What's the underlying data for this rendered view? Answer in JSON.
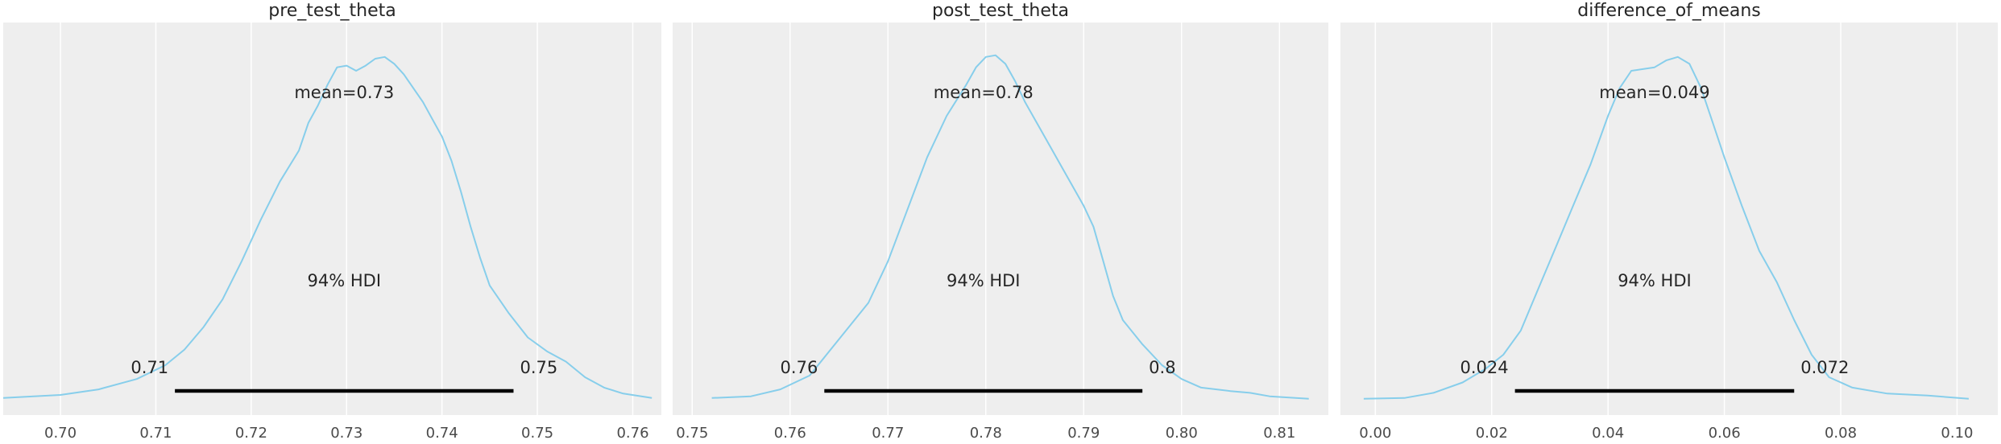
{
  "chart_data": [
    {
      "type": "area",
      "title": "pre_test_theta",
      "xlim": [
        0.694,
        0.763
      ],
      "xticks": [
        0.7,
        0.71,
        0.72,
        0.73,
        0.74,
        0.75,
        0.76
      ],
      "xtick_labels": [
        "0.70",
        "0.71",
        "0.72",
        "0.73",
        "0.74",
        "0.75",
        "0.76"
      ],
      "ylim": [
        0,
        1.05
      ],
      "density": [
        [
          0.694,
          0.005
        ],
        [
          0.7,
          0.014
        ],
        [
          0.704,
          0.03
        ],
        [
          0.708,
          0.06
        ],
        [
          0.711,
          0.1
        ],
        [
          0.713,
          0.145
        ],
        [
          0.715,
          0.21
        ],
        [
          0.717,
          0.29
        ],
        [
          0.719,
          0.4
        ],
        [
          0.721,
          0.52
        ],
        [
          0.723,
          0.63
        ],
        [
          0.725,
          0.72
        ],
        [
          0.726,
          0.8
        ],
        [
          0.727,
          0.85
        ],
        [
          0.728,
          0.91
        ],
        [
          0.729,
          0.96
        ],
        [
          0.73,
          0.965
        ],
        [
          0.731,
          0.95
        ],
        [
          0.732,
          0.965
        ],
        [
          0.733,
          0.985
        ],
        [
          0.734,
          0.99
        ],
        [
          0.735,
          0.97
        ],
        [
          0.736,
          0.94
        ],
        [
          0.737,
          0.9
        ],
        [
          0.738,
          0.86
        ],
        [
          0.739,
          0.81
        ],
        [
          0.74,
          0.76
        ],
        [
          0.741,
          0.69
        ],
        [
          0.742,
          0.6
        ],
        [
          0.743,
          0.5
        ],
        [
          0.744,
          0.41
        ],
        [
          0.745,
          0.33
        ],
        [
          0.747,
          0.25
        ],
        [
          0.749,
          0.18
        ],
        [
          0.751,
          0.14
        ],
        [
          0.753,
          0.11
        ],
        [
          0.755,
          0.065
        ],
        [
          0.757,
          0.035
        ],
        [
          0.759,
          0.018
        ],
        [
          0.762,
          0.005
        ]
      ],
      "mean_label": "mean=0.73",
      "hdi_label": "94% HDI",
      "hdi": [
        0.712,
        0.7475
      ],
      "hdi_low_label": "0.71",
      "hdi_high_label": "0.75"
    },
    {
      "type": "area",
      "title": "post_test_theta",
      "xlim": [
        0.748,
        0.815
      ],
      "xticks": [
        0.75,
        0.76,
        0.77,
        0.78,
        0.79,
        0.8,
        0.81
      ],
      "xtick_labels": [
        "0.75",
        "0.76",
        "0.77",
        "0.78",
        "0.79",
        "0.80",
        "0.81"
      ],
      "ylim": [
        0,
        1.05
      ],
      "density": [
        [
          0.752,
          0.005
        ],
        [
          0.756,
          0.01
        ],
        [
          0.759,
          0.03
        ],
        [
          0.762,
          0.07
        ],
        [
          0.764,
          0.14
        ],
        [
          0.766,
          0.21
        ],
        [
          0.768,
          0.28
        ],
        [
          0.77,
          0.4
        ],
        [
          0.772,
          0.55
        ],
        [
          0.774,
          0.7
        ],
        [
          0.776,
          0.82
        ],
        [
          0.778,
          0.91
        ],
        [
          0.779,
          0.96
        ],
        [
          0.78,
          0.99
        ],
        [
          0.781,
          0.995
        ],
        [
          0.782,
          0.97
        ],
        [
          0.783,
          0.92
        ],
        [
          0.784,
          0.86
        ],
        [
          0.786,
          0.76
        ],
        [
          0.788,
          0.66
        ],
        [
          0.79,
          0.56
        ],
        [
          0.791,
          0.5
        ],
        [
          0.792,
          0.4
        ],
        [
          0.793,
          0.3
        ],
        [
          0.794,
          0.23
        ],
        [
          0.796,
          0.16
        ],
        [
          0.798,
          0.1
        ],
        [
          0.8,
          0.06
        ],
        [
          0.802,
          0.035
        ],
        [
          0.805,
          0.025
        ],
        [
          0.807,
          0.02
        ],
        [
          0.809,
          0.01
        ],
        [
          0.813,
          0.003
        ]
      ],
      "mean_label": "mean=0.78",
      "hdi_label": "94% HDI",
      "hdi": [
        0.7635,
        0.796
      ],
      "hdi_low_label": "0.76",
      "hdi_high_label": "0.8"
    },
    {
      "type": "area",
      "title": "difference_of_means",
      "xlim": [
        -0.006,
        0.107
      ],
      "xticks": [
        0.0,
        0.02,
        0.04,
        0.06,
        0.08,
        0.1
      ],
      "xtick_labels": [
        "0.00",
        "0.02",
        "0.04",
        "0.06",
        "0.08",
        "0.10"
      ],
      "ylim": [
        0,
        1.05
      ],
      "density": [
        [
          -0.002,
          0.003
        ],
        [
          0.005,
          0.005
        ],
        [
          0.01,
          0.02
        ],
        [
          0.015,
          0.05
        ],
        [
          0.019,
          0.09
        ],
        [
          0.022,
          0.13
        ],
        [
          0.025,
          0.2
        ],
        [
          0.028,
          0.32
        ],
        [
          0.031,
          0.44
        ],
        [
          0.034,
          0.56
        ],
        [
          0.037,
          0.68
        ],
        [
          0.04,
          0.82
        ],
        [
          0.042,
          0.9
        ],
        [
          0.044,
          0.95
        ],
        [
          0.046,
          0.955
        ],
        [
          0.048,
          0.96
        ],
        [
          0.05,
          0.98
        ],
        [
          0.052,
          0.99
        ],
        [
          0.054,
          0.97
        ],
        [
          0.056,
          0.9
        ],
        [
          0.058,
          0.8
        ],
        [
          0.06,
          0.7
        ],
        [
          0.063,
          0.56
        ],
        [
          0.066,
          0.43
        ],
        [
          0.069,
          0.34
        ],
        [
          0.072,
          0.23
        ],
        [
          0.075,
          0.13
        ],
        [
          0.078,
          0.065
        ],
        [
          0.082,
          0.035
        ],
        [
          0.088,
          0.018
        ],
        [
          0.095,
          0.012
        ],
        [
          0.102,
          0.003
        ]
      ],
      "mean_label": "mean=0.049",
      "hdi_label": "94% HDI",
      "hdi": [
        0.024,
        0.072
      ],
      "hdi_low_label": "0.024",
      "hdi_high_label": "0.072"
    }
  ],
  "colors": {
    "panel_bg": "#eeeeee",
    "grid": "#ffffff",
    "line": "#87ceeb",
    "hdi_bar": "#000000"
  },
  "grid": true
}
